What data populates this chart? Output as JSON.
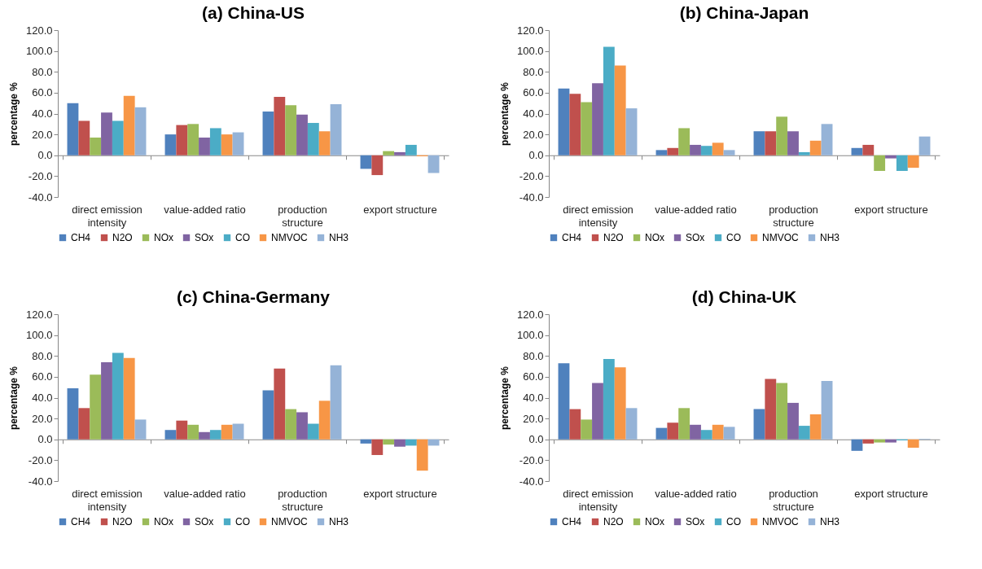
{
  "chart_data": [
    {
      "type": "bar",
      "title": "(a) China-US",
      "ylabel": "percentage %",
      "categories": [
        "direct emission intensity",
        "value-added ratio",
        "production structure",
        "export structure"
      ],
      "ylim": [
        -40,
        120
      ],
      "yticks": [
        {
          "value": -40,
          "label": "-40.0"
        },
        {
          "value": -20,
          "label": "-20.0"
        },
        {
          "value": 0,
          "label": "0.0"
        },
        {
          "value": 20,
          "label": "20.0"
        },
        {
          "value": 40,
          "label": "40.0"
        },
        {
          "value": 60,
          "label": "60.0"
        },
        {
          "value": 80,
          "label": "80.0"
        },
        {
          "value": 100,
          "label": "100.0"
        },
        {
          "value": 120,
          "label": "120.0"
        }
      ],
      "legend": "bottom",
      "series": [
        {
          "name": "CH4",
          "color": "#4f81bd",
          "values": [
            50,
            20,
            42,
            -13
          ]
        },
        {
          "name": "N2O",
          "color": "#c0504d",
          "values": [
            33,
            29,
            56,
            -19
          ]
        },
        {
          "name": "NOx",
          "color": "#9bbb59",
          "values": [
            17,
            30,
            48,
            4
          ]
        },
        {
          "name": "SOx",
          "color": "#8064a2",
          "values": [
            41,
            17,
            39,
            3
          ]
        },
        {
          "name": "CO",
          "color": "#4bacc6",
          "values": [
            33,
            26,
            31,
            10
          ]
        },
        {
          "name": "NMVOC",
          "color": "#f79646",
          "values": [
            57,
            20,
            23,
            -1
          ]
        },
        {
          "name": "NH3",
          "color": "#95b3d7",
          "values": [
            46,
            22,
            49,
            -17
          ]
        }
      ]
    },
    {
      "type": "bar",
      "title": "(b) China-Japan",
      "ylabel": "percentage %",
      "categories": [
        "direct emission intensity",
        "value-added ratio",
        "production structure",
        "export structure"
      ],
      "ylim": [
        -40,
        120
      ],
      "yticks": [
        {
          "value": -40,
          "label": "-40.0"
        },
        {
          "value": -20,
          "label": "-20.0"
        },
        {
          "value": 0,
          "label": "0.0"
        },
        {
          "value": 20,
          "label": "20.0"
        },
        {
          "value": 40,
          "label": "40.0"
        },
        {
          "value": 60,
          "label": "60.0"
        },
        {
          "value": 80,
          "label": "80.0"
        },
        {
          "value": 100,
          "label": "100.0"
        },
        {
          "value": 120,
          "label": "120.0"
        }
      ],
      "legend": "bottom",
      "series": [
        {
          "name": "CH4",
          "color": "#4f81bd",
          "values": [
            64,
            5,
            23,
            7
          ]
        },
        {
          "name": "N2O",
          "color": "#c0504d",
          "values": [
            59,
            7,
            23,
            10
          ]
        },
        {
          "name": "NOx",
          "color": "#9bbb59",
          "values": [
            51,
            26,
            37,
            -15
          ]
        },
        {
          "name": "SOx",
          "color": "#8064a2",
          "values": [
            69,
            10,
            23,
            -3
          ]
        },
        {
          "name": "CO",
          "color": "#4bacc6",
          "values": [
            104,
            9,
            3,
            -15
          ]
        },
        {
          "name": "NMVOC",
          "color": "#f79646",
          "values": [
            86,
            12,
            14,
            -12
          ]
        },
        {
          "name": "NH3",
          "color": "#95b3d7",
          "values": [
            45,
            5,
            30,
            18
          ]
        }
      ]
    },
    {
      "type": "bar",
      "title": "(c) China-Germany",
      "ylabel": "percentage %",
      "categories": [
        "direct emission intensity",
        "value-added ratio",
        "production structure",
        "export structure"
      ],
      "ylim": [
        -40,
        120
      ],
      "yticks": [
        {
          "value": -40,
          "label": "-40.0"
        },
        {
          "value": -20,
          "label": "-20.0"
        },
        {
          "value": 0,
          "label": "0.0"
        },
        {
          "value": 20,
          "label": "20.0"
        },
        {
          "value": 40,
          "label": "40.0"
        },
        {
          "value": 60,
          "label": "60.0"
        },
        {
          "value": 80,
          "label": "80.0"
        },
        {
          "value": 100,
          "label": "100.0"
        },
        {
          "value": 120,
          "label": "120.0"
        }
      ],
      "legend": "bottom",
      "series": [
        {
          "name": "CH4",
          "color": "#4f81bd",
          "values": [
            49,
            9,
            47,
            -4
          ]
        },
        {
          "name": "N2O",
          "color": "#c0504d",
          "values": [
            30,
            18,
            68,
            -15
          ]
        },
        {
          "name": "NOx",
          "color": "#9bbb59",
          "values": [
            62,
            14,
            29,
            -5
          ]
        },
        {
          "name": "SOx",
          "color": "#8064a2",
          "values": [
            74,
            7,
            26,
            -7
          ]
        },
        {
          "name": "CO",
          "color": "#4bacc6",
          "values": [
            83,
            9,
            15,
            -6
          ]
        },
        {
          "name": "NMVOC",
          "color": "#f79646",
          "values": [
            78,
            14,
            37,
            -30
          ]
        },
        {
          "name": "NH3",
          "color": "#95b3d7",
          "values": [
            19,
            15,
            71,
            -6
          ]
        }
      ]
    },
    {
      "type": "bar",
      "title": "(d) China-UK",
      "ylabel": "percentage %",
      "categories": [
        "direct emission intensity",
        "value-added ratio",
        "production structure",
        "export structure"
      ],
      "ylim": [
        -40,
        120
      ],
      "yticks": [
        {
          "value": -40,
          "label": "-40.0"
        },
        {
          "value": -20,
          "label": "-20.0"
        },
        {
          "value": 0,
          "label": "0.0"
        },
        {
          "value": 20,
          "label": "20.0"
        },
        {
          "value": 40,
          "label": "40.0"
        },
        {
          "value": 60,
          "label": "60.0"
        },
        {
          "value": 80,
          "label": "80.0"
        },
        {
          "value": 100,
          "label": "100.0"
        },
        {
          "value": 120,
          "label": "120.0"
        }
      ],
      "legend": "bottom",
      "series": [
        {
          "name": "CH4",
          "color": "#4f81bd",
          "values": [
            73,
            11,
            29,
            -11
          ]
        },
        {
          "name": "N2O",
          "color": "#c0504d",
          "values": [
            29,
            16,
            58,
            -4
          ]
        },
        {
          "name": "NOx",
          "color": "#9bbb59",
          "values": [
            19,
            30,
            54,
            -3
          ]
        },
        {
          "name": "SOx",
          "color": "#8064a2",
          "values": [
            54,
            14,
            35,
            -3
          ]
        },
        {
          "name": "CO",
          "color": "#4bacc6",
          "values": [
            77,
            9,
            13,
            -1
          ]
        },
        {
          "name": "NMVOC",
          "color": "#f79646",
          "values": [
            69,
            14,
            24,
            -8
          ]
        },
        {
          "name": "NH3",
          "color": "#95b3d7",
          "values": [
            30,
            12,
            56,
            0.5
          ]
        }
      ]
    }
  ]
}
